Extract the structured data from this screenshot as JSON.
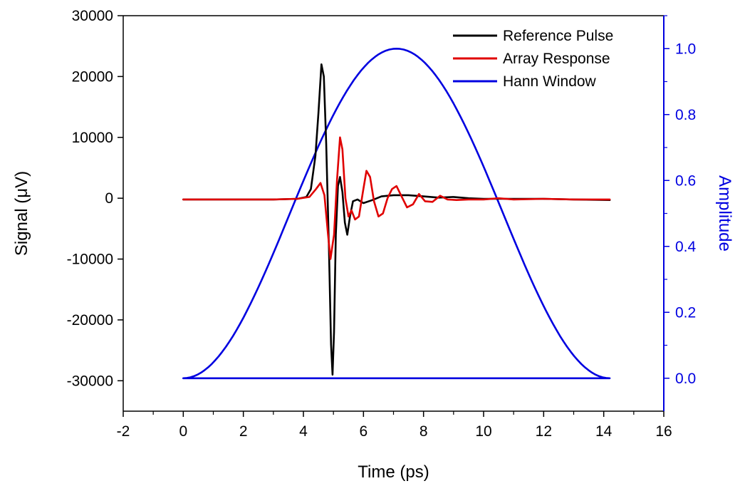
{
  "chart_data": {
    "type": "line",
    "title": "",
    "xlabel": "Time (ps)",
    "ylabel": "Signal (μV)",
    "y2label": "Amplitude",
    "xlim": [
      -2,
      16
    ],
    "ylim": [
      -35000,
      30000
    ],
    "y2lim": [
      -0.1,
      1.1
    ],
    "x_ticks": [
      -2,
      0,
      2,
      4,
      6,
      8,
      10,
      12,
      14,
      16
    ],
    "x_tick_labels": [
      "-2",
      "0",
      "2",
      "4",
      "6",
      "8",
      "10",
      "12",
      "14",
      "16"
    ],
    "y_ticks": [
      -30000,
      -20000,
      -10000,
      0,
      10000,
      20000,
      30000
    ],
    "y_tick_labels": [
      "-30000",
      "-20000",
      "-10000",
      "0",
      "10000",
      "20000",
      "30000"
    ],
    "y2_ticks": [
      0.0,
      0.2,
      0.4,
      0.6,
      0.8,
      1.0
    ],
    "y2_tick_labels": [
      "0.0",
      "0.2",
      "0.4",
      "0.6",
      "0.8",
      "1.0"
    ],
    "grid": false,
    "legend_position": "top-right",
    "series": [
      {
        "name": "Reference Pulse",
        "color": "#000000",
        "axis": "left",
        "x": [
          0.0,
          1.0,
          2.0,
          3.0,
          3.8,
          4.1,
          4.25,
          4.4,
          4.5,
          4.6,
          4.68,
          4.76,
          4.85,
          4.92,
          4.97,
          5.02,
          5.08,
          5.15,
          5.22,
          5.3,
          5.38,
          5.46,
          5.55,
          5.65,
          5.8,
          6.0,
          6.3,
          6.6,
          7.0,
          7.5,
          8.0,
          8.5,
          9.0,
          9.5,
          10.0,
          11.0,
          12.0,
          13.0,
          14.2
        ],
        "values": [
          -200,
          -200,
          -200,
          -200,
          -100,
          200,
          1500,
          7000,
          14000,
          22000,
          20000,
          9000,
          -8000,
          -24000,
          -29000,
          -22000,
          -6000,
          2000,
          3500,
          1000,
          -4000,
          -6000,
          -3000,
          -500,
          -200,
          -800,
          -300,
          300,
          500,
          500,
          300,
          100,
          200,
          0,
          -100,
          -100,
          -100,
          -200,
          -300
        ]
      },
      {
        "name": "Array Response",
        "color": "#e00000",
        "axis": "left",
        "x": [
          0.0,
          1.0,
          2.0,
          3.0,
          3.8,
          4.2,
          4.42,
          4.57,
          4.7,
          4.82,
          4.9,
          5.02,
          5.12,
          5.22,
          5.3,
          5.4,
          5.5,
          5.6,
          5.72,
          5.85,
          5.98,
          6.1,
          6.22,
          6.35,
          6.5,
          6.65,
          6.8,
          6.95,
          7.1,
          7.25,
          7.45,
          7.65,
          7.85,
          8.05,
          8.3,
          8.55,
          8.8,
          9.1,
          9.5,
          10.0,
          10.5,
          11.0,
          12.0,
          13.0,
          14.2
        ],
        "values": [
          -200,
          -200,
          -200,
          -200,
          -100,
          200,
          1500,
          2500,
          500,
          -6000,
          -10000,
          -6000,
          3000,
          10000,
          8000,
          0,
          -3000,
          -2000,
          -3500,
          -3000,
          1000,
          4500,
          3500,
          -500,
          -3000,
          -2500,
          0,
          1500,
          2000,
          500,
          -1500,
          -1000,
          700,
          -500,
          -600,
          400,
          -200,
          -300,
          -200,
          -200,
          0,
          -200,
          -100,
          -200,
          -200
        ]
      },
      {
        "name": "Hann Window",
        "color": "#0000e0",
        "axis": "right",
        "x": [
          0.0,
          0.71,
          1.42,
          2.13,
          2.84,
          3.55,
          4.26,
          4.97,
          5.68,
          6.39,
          7.1,
          7.81,
          8.52,
          9.23,
          9.94,
          10.65,
          11.36,
          12.07,
          12.78,
          13.49,
          14.2,
          14.2,
          0.0
        ],
        "values": [
          0.0,
          0.024,
          0.095,
          0.206,
          0.345,
          0.5,
          0.655,
          0.794,
          0.905,
          0.976,
          1.0,
          0.976,
          0.905,
          0.794,
          0.655,
          0.5,
          0.345,
          0.206,
          0.095,
          0.024,
          0.0,
          0.0,
          0.0
        ]
      }
    ]
  }
}
